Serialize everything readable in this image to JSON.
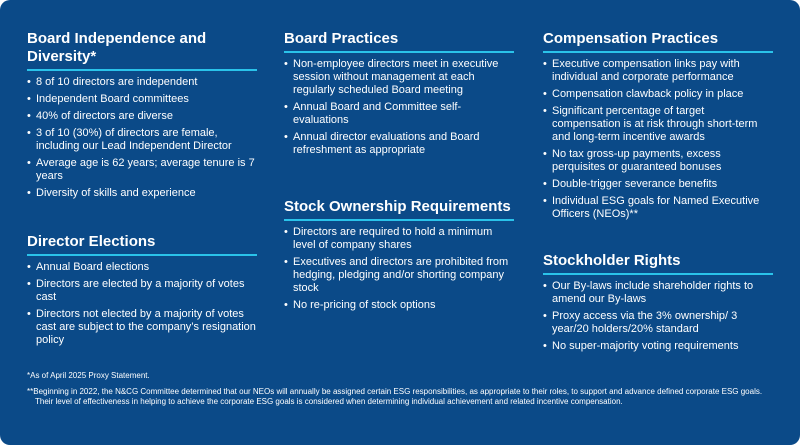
{
  "columns": [
    {
      "sections": [
        {
          "title": "Board Independence and Diversity*",
          "items": [
            "8 of 10 directors are independent",
            "Independent Board committees",
            "40% of directors are diverse",
            "3 of 10 (30%) of directors are female, including our Lead Independent Director",
            "Average age is 62 years; average tenure is 7 years",
            "Diversity of skills and experience"
          ]
        },
        {
          "title": "Director Elections",
          "items": [
            "Annual Board elections",
            "Directors are elected by a majority of votes cast",
            "Directors not elected by a majority of votes cast are subject to the company’s resignation policy"
          ]
        }
      ]
    },
    {
      "sections": [
        {
          "title": "Board Practices",
          "items": [
            "Non-employee directors meet in executive session without management at each regularly scheduled Board meeting",
            "Annual Board and Committee self-evaluations",
            "Annual director evaluations and Board refreshment as appropriate"
          ]
        },
        {
          "title": "Stock Ownership Requirements",
          "items": [
            "Directors are required to hold a minimum level of company shares",
            "Executives and directors are prohibited from hedging, pledging and/or shorting company stock",
            "No re-pricing of stock options"
          ]
        }
      ]
    },
    {
      "sections": [
        {
          "title": "Compensation Practices",
          "items": [
            "Executive compensation links pay with individual and corporate performance",
            "Compensation clawback policy in place",
            "Significant percentage of target compensation is at risk through short-term and long-term incentive awards",
            "No tax gross-up payments, excess perquisites or guaranteed bonuses",
            "Double-trigger severance benefits",
            "Individual ESG goals for Named Executive Officers (NEOs)**"
          ]
        },
        {
          "title": "Stockholder Rights",
          "items": [
            "Our By-laws include shareholder rights to amend our By-laws",
            "Proxy access via the 3% ownership/ 3 year/20 holders/20% standard",
            "No super-majority voting requirements"
          ]
        }
      ]
    }
  ],
  "footnotes": [
    "*As of April 2025 Proxy Statement.",
    "**Beginning in 2022, the N&CG Committee determined that our NEOs will annually be assigned certain ESG responsibilities, as appropriate to their roles, to support and advance defined corporate ESG goals. Their level of effectiveness in helping to achieve the corporate ESG goals is considered when determining individual achievement and related incentive compensation."
  ]
}
